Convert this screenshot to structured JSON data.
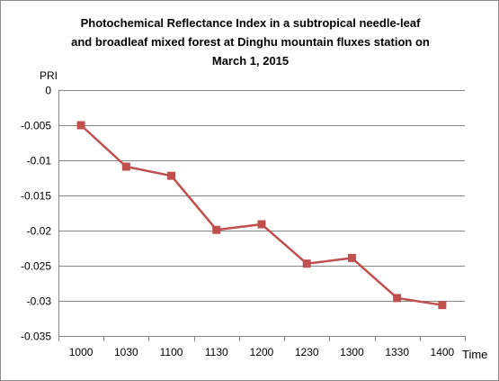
{
  "chart_data": {
    "type": "line",
    "title_lines": [
      "Photochemical Reflectance Index in a subtropical needle-leaf",
      "and broadleaf mixed forest at Dinghu mountain fluxes station on",
      "March 1, 2015"
    ],
    "ylabel": "PRI",
    "xlabel": "Time",
    "categories": [
      "1000",
      "1030",
      "1100",
      "1130",
      "1200",
      "1230",
      "1300",
      "1330",
      "1400"
    ],
    "series": [
      {
        "values": [
          -0.005,
          -0.0109,
          -0.0122,
          -0.0199,
          -0.0191,
          -0.0247,
          -0.0239,
          -0.0296,
          -0.0306
        ],
        "color": "#c0504d",
        "marker": "square"
      }
    ],
    "ylim": [
      -0.035,
      0
    ],
    "yticks": [
      0,
      -0.005,
      -0.01,
      -0.015,
      -0.02,
      -0.025,
      -0.03,
      -0.035
    ],
    "ytick_labels": [
      "0",
      "-0.005",
      "-0.01",
      "-0.015",
      "-0.02",
      "-0.025",
      "-0.03",
      "-0.035"
    ],
    "grid": true,
    "gridline_color": "#868686",
    "legend": "none"
  }
}
